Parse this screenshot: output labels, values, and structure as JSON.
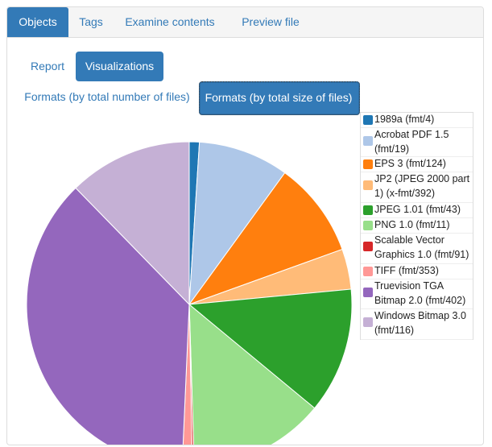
{
  "top_tabs": [
    {
      "label": "Objects",
      "active": true
    },
    {
      "label": "Tags",
      "active": false
    },
    {
      "label": "Examine contents",
      "active": false
    },
    {
      "label": "Preview file",
      "active": false
    }
  ],
  "sub_tabs": [
    {
      "label": "Report",
      "active": false
    },
    {
      "label": "Visualizations",
      "active": true
    }
  ],
  "format_tabs": [
    {
      "label": "Formats (by total number of files)",
      "active": false
    },
    {
      "label": "Formats (by total size of files)",
      "active": true
    }
  ],
  "legend": [
    {
      "label": "1989a (fmt/4)",
      "color": "#1f77b4"
    },
    {
      "label": "Acrobat PDF 1.5 (fmt/19)",
      "color": "#aec7e8"
    },
    {
      "label": "EPS 3 (fmt/124)",
      "color": "#ff7f0e"
    },
    {
      "label": "JP2 (JPEG 2000 part 1) (x-fmt/392)",
      "color": "#ffbb78"
    },
    {
      "label": "JPEG 1.01 (fmt/43)",
      "color": "#2ca02c"
    },
    {
      "label": "PNG 1.0 (fmt/11)",
      "color": "#98df8a"
    },
    {
      "label": "Scalable Vector Graphics 1.0 (fmt/91)",
      "color": "#d62728"
    },
    {
      "label": "TIFF (fmt/353)",
      "color": "#ff9896"
    },
    {
      "label": "Truevision TGA Bitmap 2.0 (fmt/402)",
      "color": "#9467bd"
    },
    {
      "label": "Windows Bitmap 3.0 (fmt/116)",
      "color": "#c5b0d5"
    }
  ],
  "chart_data": {
    "type": "pie",
    "title": "",
    "labels": [
      "1989a (fmt/4)",
      "Acrobat PDF 1.5 (fmt/19)",
      "EPS 3 (fmt/124)",
      "JP2 (JPEG 2000 part 1) (x-fmt/392)",
      "JPEG 1.01 (fmt/43)",
      "PNG 1.0 (fmt/11)",
      "Scalable Vector Graphics 1.0 (fmt/91)",
      "TIFF (fmt/353)",
      "Truevision TGA Bitmap 2.0 (fmt/402)",
      "Windows Bitmap 3.0 (fmt/116)"
    ],
    "values": [
      1.0,
      9.0,
      9.5,
      4.0,
      12.5,
      13.5,
      0.2,
      1.0,
      37.0,
      12.3
    ],
    "colors": [
      "#1f77b4",
      "#aec7e8",
      "#ff7f0e",
      "#ffbb78",
      "#2ca02c",
      "#98df8a",
      "#d62728",
      "#ff9896",
      "#9467bd",
      "#c5b0d5"
    ],
    "legend_position": "right"
  }
}
